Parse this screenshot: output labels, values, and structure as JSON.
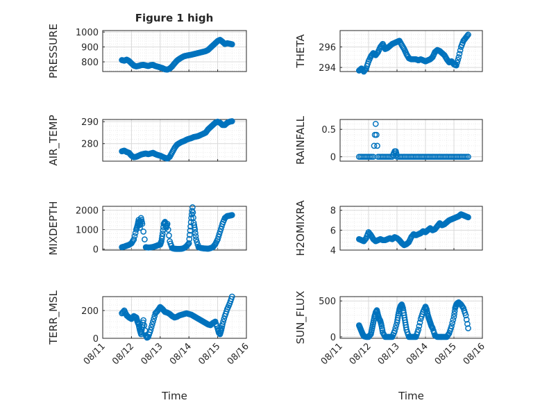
{
  "figure": {
    "title": "Figure 1 high"
  },
  "colors": {
    "marker": "#0072BD",
    "axis": "#262626",
    "grid": "#d9d9d9"
  },
  "chart_data": [
    {
      "type": "scatter",
      "ylabel": "PRESSURE",
      "ylim": [
        735,
        1010
      ],
      "yticks": [
        {
          "v": 800,
          "label": "800"
        },
        {
          "v": 900,
          "label": "900"
        },
        {
          "v": 1000,
          "label": "1000"
        }
      ],
      "x": [
        "2014-08-11T16:00",
        "2014-08-11T18:00",
        "2014-08-11T20:00",
        "2014-08-11T22:00",
        "2014-08-12T00:00",
        "2014-08-12T02:00",
        "2014-08-12T04:00",
        "2014-08-12T06:00",
        "2014-08-12T08:00",
        "2014-08-12T10:00",
        "2014-08-12T12:00",
        "2014-08-12T14:00",
        "2014-08-12T16:00",
        "2014-08-12T18:00",
        "2014-08-12T20:00",
        "2014-08-12T22:00",
        "2014-08-13T00:00",
        "2014-08-13T02:00",
        "2014-08-13T04:00",
        "2014-08-13T06:00",
        "2014-08-13T08:00",
        "2014-08-13T10:00",
        "2014-08-13T12:00",
        "2014-08-13T14:00",
        "2014-08-13T16:00",
        "2014-08-13T18:00",
        "2014-08-13T20:00",
        "2014-08-13T22:00",
        "2014-08-14T00:00",
        "2014-08-14T02:00",
        "2014-08-14T04:00",
        "2014-08-14T06:00",
        "2014-08-14T08:00",
        "2014-08-14T10:00",
        "2014-08-14T12:00",
        "2014-08-14T14:00",
        "2014-08-14T16:00",
        "2014-08-14T18:00",
        "2014-08-14T20:00",
        "2014-08-14T22:00",
        "2014-08-15T00:00",
        "2014-08-15T02:00",
        "2014-08-15T04:00",
        "2014-08-15T06:00",
        "2014-08-15T08:00",
        "2014-08-15T10:00",
        "2014-08-15T12:00"
      ],
      "y": [
        812,
        808,
        815,
        806,
        790,
        775,
        770,
        773,
        778,
        780,
        776,
        772,
        778,
        780,
        772,
        768,
        763,
        758,
        750,
        748,
        755,
        770,
        790,
        808,
        820,
        830,
        838,
        842,
        845,
        848,
        852,
        856,
        860,
        864,
        868,
        872,
        880,
        895,
        910,
        925,
        940,
        948,
        935,
        920,
        925,
        922,
        918
      ]
    },
    {
      "type": "scatter",
      "ylabel": "THETA",
      "ylim": [
        293.6,
        297.6
      ],
      "yticks": [
        {
          "v": 294,
          "label": "294"
        },
        {
          "v": 296,
          "label": "296"
        }
      ],
      "x": [
        "2014-08-11T16:00",
        "2014-08-11T18:00",
        "2014-08-11T20:00",
        "2014-08-11T22:00",
        "2014-08-12T00:00",
        "2014-08-12T02:00",
        "2014-08-12T04:00",
        "2014-08-12T06:00",
        "2014-08-12T08:00",
        "2014-08-12T10:00",
        "2014-08-12T12:00",
        "2014-08-12T14:00",
        "2014-08-12T16:00",
        "2014-08-12T18:00",
        "2014-08-12T20:00",
        "2014-08-12T22:00",
        "2014-08-13T00:00",
        "2014-08-13T02:00",
        "2014-08-13T04:00",
        "2014-08-13T06:00",
        "2014-08-13T08:00",
        "2014-08-13T10:00",
        "2014-08-13T12:00",
        "2014-08-13T14:00",
        "2014-08-13T16:00",
        "2014-08-13T18:00",
        "2014-08-13T20:00",
        "2014-08-13T22:00",
        "2014-08-14T00:00",
        "2014-08-14T02:00",
        "2014-08-14T04:00",
        "2014-08-14T06:00",
        "2014-08-14T08:00",
        "2014-08-14T10:00",
        "2014-08-14T12:00",
        "2014-08-14T14:00",
        "2014-08-14T16:00",
        "2014-08-14T18:00",
        "2014-08-14T20:00",
        "2014-08-14T22:00",
        "2014-08-15T00:00",
        "2014-08-15T02:00",
        "2014-08-15T04:00",
        "2014-08-15T06:00",
        "2014-08-15T08:00",
        "2014-08-15T10:00",
        "2014-08-15T12:00"
      ],
      "y": [
        293.7,
        293.9,
        293.6,
        293.9,
        294.6,
        295.1,
        295.4,
        295.2,
        295.5,
        296.0,
        296.3,
        295.8,
        295.9,
        296.1,
        296.3,
        296.4,
        296.5,
        296.6,
        296.2,
        295.8,
        295.3,
        294.9,
        294.8,
        294.8,
        294.8,
        294.7,
        294.8,
        294.7,
        294.6,
        294.7,
        294.8,
        295.0,
        295.5,
        295.7,
        295.6,
        295.4,
        295.2,
        294.8,
        294.5,
        294.6,
        294.3,
        294.2,
        295.0,
        296.0,
        296.6,
        296.9,
        297.2
      ]
    },
    {
      "type": "scatter",
      "ylabel": "AIR_TEMP",
      "ylim": [
        272,
        291
      ],
      "yticks": [
        {
          "v": 280,
          "label": "280"
        },
        {
          "v": 290,
          "label": "290"
        }
      ],
      "x": [
        "2014-08-11T16:00",
        "2014-08-11T18:00",
        "2014-08-11T20:00",
        "2014-08-11T22:00",
        "2014-08-12T00:00",
        "2014-08-12T02:00",
        "2014-08-12T04:00",
        "2014-08-12T06:00",
        "2014-08-12T08:00",
        "2014-08-12T10:00",
        "2014-08-12T12:00",
        "2014-08-12T14:00",
        "2014-08-12T16:00",
        "2014-08-12T18:00",
        "2014-08-12T20:00",
        "2014-08-12T22:00",
        "2014-08-13T00:00",
        "2014-08-13T02:00",
        "2014-08-13T04:00",
        "2014-08-13T06:00",
        "2014-08-13T08:00",
        "2014-08-13T10:00",
        "2014-08-13T12:00",
        "2014-08-13T14:00",
        "2014-08-13T16:00",
        "2014-08-13T18:00",
        "2014-08-13T20:00",
        "2014-08-13T22:00",
        "2014-08-14T00:00",
        "2014-08-14T02:00",
        "2014-08-14T04:00",
        "2014-08-14T06:00",
        "2014-08-14T08:00",
        "2014-08-14T10:00",
        "2014-08-14T12:00",
        "2014-08-14T14:00",
        "2014-08-14T16:00",
        "2014-08-14T18:00",
        "2014-08-14T20:00",
        "2014-08-14T22:00",
        "2014-08-15T00:00",
        "2014-08-15T02:00",
        "2014-08-15T04:00",
        "2014-08-15T06:00",
        "2014-08-15T08:00",
        "2014-08-15T10:00",
        "2014-08-15T12:00"
      ],
      "y": [
        276.5,
        276.8,
        276.2,
        275.8,
        274.5,
        273.8,
        274.0,
        274.5,
        275.0,
        275.3,
        275.5,
        275.2,
        275.5,
        275.8,
        275.2,
        274.8,
        274.5,
        274.0,
        273.5,
        273.2,
        274.0,
        276.0,
        278.0,
        279.5,
        280.2,
        280.8,
        281.2,
        281.8,
        282.2,
        282.5,
        283.0,
        283.2,
        283.5,
        284.0,
        284.5,
        285.0,
        286.5,
        287.5,
        288.5,
        289.5,
        290.0,
        289.5,
        288.5,
        288.5,
        289.5,
        290.0,
        290.2
      ]
    },
    {
      "type": "scatter",
      "ylabel": "RAINFALL",
      "ylim": [
        -0.08,
        0.68
      ],
      "yticks": [
        {
          "v": 0,
          "label": "0"
        },
        {
          "v": 0.5,
          "label": "0.5"
        }
      ],
      "x": [
        "2014-08-11T16:00",
        "2014-08-11T20:00",
        "2014-08-12T00:00",
        "2014-08-12T04:00",
        "2014-08-12T06:00",
        "2014-08-12T08:00",
        "2014-08-12T12:00",
        "2014-08-12T16:00",
        "2014-08-12T20:00",
        "2014-08-12T22:00",
        "2014-08-12T23:00",
        "2014-08-13T00:00",
        "2014-08-13T04:00",
        "2014-08-13T08:00",
        "2014-08-13T12:00",
        "2014-08-13T16:00",
        "2014-08-13T20:00",
        "2014-08-14T00:00",
        "2014-08-14T04:00",
        "2014-08-14T08:00",
        "2014-08-14T12:00",
        "2014-08-14T16:00",
        "2014-08-14T20:00",
        "2014-08-15T00:00",
        "2014-08-15T04:00",
        "2014-08-15T08:00",
        "2014-08-15T12:00"
      ],
      "y": [
        0,
        0,
        0,
        0,
        0.6,
        0,
        0,
        0,
        0,
        0.1,
        0.1,
        0,
        0,
        0,
        0,
        0,
        0,
        0,
        0,
        0,
        0,
        0,
        0,
        0,
        0,
        0,
        0
      ],
      "connect_zero_band": true
    },
    {
      "type": "scatter",
      "ylabel": "MIXDEPTH",
      "ylim": [
        -50,
        2200
      ],
      "yticks": [
        {
          "v": 0,
          "label": "0"
        },
        {
          "v": 1000,
          "label": "1000"
        },
        {
          "v": 2000,
          "label": "2000"
        }
      ],
      "x": [
        "2014-08-11T16:00",
        "2014-08-11T18:00",
        "2014-08-11T20:00",
        "2014-08-11T22:00",
        "2014-08-12T00:00",
        "2014-08-12T02:00",
        "2014-08-12T04:00",
        "2014-08-12T05:00",
        "2014-08-12T06:00",
        "2014-08-12T07:00",
        "2014-08-12T08:00",
        "2014-08-12T09:00",
        "2014-08-12T12:00",
        "2014-08-12T14:00",
        "2014-08-12T16:00",
        "2014-08-12T18:00",
        "2014-08-12T20:00",
        "2014-08-12T22:00",
        "2014-08-13T00:00",
        "2014-08-13T01:00",
        "2014-08-13T02:00",
        "2014-08-13T03:00",
        "2014-08-13T04:00",
        "2014-08-13T05:00",
        "2014-08-13T06:00",
        "2014-08-13T08:00",
        "2014-08-13T10:00",
        "2014-08-13T12:00",
        "2014-08-13T14:00",
        "2014-08-13T16:00",
        "2014-08-13T18:00",
        "2014-08-13T20:00",
        "2014-08-13T22:00",
        "2014-08-14T00:00",
        "2014-08-14T01:00",
        "2014-08-14T02:00",
        "2014-08-14T03:00",
        "2014-08-14T04:00",
        "2014-08-14T05:00",
        "2014-08-14T06:00",
        "2014-08-14T08:00",
        "2014-08-14T10:00",
        "2014-08-14T12:00",
        "2014-08-14T14:00",
        "2014-08-14T16:00",
        "2014-08-14T18:00",
        "2014-08-14T20:00",
        "2014-08-14T22:00",
        "2014-08-15T00:00",
        "2014-08-15T02:00",
        "2014-08-15T04:00",
        "2014-08-15T06:00",
        "2014-08-15T08:00",
        "2014-08-15T10:00",
        "2014-08-15T12:00"
      ],
      "y": [
        100,
        130,
        180,
        220,
        300,
        500,
        1000,
        1200,
        1500,
        1100,
        1600,
        1300,
        100,
        80,
        90,
        110,
        150,
        200,
        230,
        400,
        800,
        1300,
        1400,
        1100,
        1300,
        400,
        50,
        20,
        10,
        10,
        20,
        60,
        150,
        300,
        950,
        1600,
        2150,
        1350,
        1000,
        500,
        100,
        60,
        40,
        30,
        20,
        50,
        100,
        250,
        500,
        900,
        1300,
        1600,
        1700,
        1720,
        1750
      ]
    },
    {
      "type": "scatter",
      "ylabel": "H2OMIXRA",
      "ylim": [
        4.0,
        8.4
      ],
      "yticks": [
        {
          "v": 4,
          "label": "4"
        },
        {
          "v": 6,
          "label": "6"
        },
        {
          "v": 8,
          "label": "8"
        }
      ],
      "x": [
        "2014-08-11T16:00",
        "2014-08-11T18:00",
        "2014-08-11T20:00",
        "2014-08-11T22:00",
        "2014-08-12T00:00",
        "2014-08-12T02:00",
        "2014-08-12T04:00",
        "2014-08-12T06:00",
        "2014-08-12T08:00",
        "2014-08-12T10:00",
        "2014-08-12T12:00",
        "2014-08-12T14:00",
        "2014-08-12T16:00",
        "2014-08-12T18:00",
        "2014-08-12T20:00",
        "2014-08-12T22:00",
        "2014-08-13T00:00",
        "2014-08-13T02:00",
        "2014-08-13T04:00",
        "2014-08-13T06:00",
        "2014-08-13T08:00",
        "2014-08-13T10:00",
        "2014-08-13T12:00",
        "2014-08-13T14:00",
        "2014-08-13T16:00",
        "2014-08-13T18:00",
        "2014-08-13T20:00",
        "2014-08-13T22:00",
        "2014-08-14T00:00",
        "2014-08-14T02:00",
        "2014-08-14T04:00",
        "2014-08-14T06:00",
        "2014-08-14T08:00",
        "2014-08-14T10:00",
        "2014-08-14T12:00",
        "2014-08-14T14:00",
        "2014-08-14T16:00",
        "2014-08-14T18:00",
        "2014-08-14T20:00",
        "2014-08-14T22:00",
        "2014-08-15T00:00",
        "2014-08-15T02:00",
        "2014-08-15T04:00",
        "2014-08-15T06:00",
        "2014-08-15T08:00",
        "2014-08-15T10:00",
        "2014-08-15T12:00"
      ],
      "y": [
        5.1,
        5.0,
        4.9,
        5.2,
        5.8,
        5.5,
        5.1,
        4.9,
        5.0,
        5.1,
        5.0,
        5.0,
        5.1,
        5.2,
        5.1,
        5.3,
        5.2,
        5.0,
        4.7,
        4.5,
        4.6,
        4.8,
        5.3,
        5.6,
        5.5,
        5.6,
        5.7,
        5.9,
        5.8,
        6.0,
        6.2,
        6.0,
        6.1,
        6.4,
        6.7,
        6.5,
        6.6,
        6.8,
        7.0,
        7.1,
        7.2,
        7.3,
        7.4,
        7.6,
        7.5,
        7.4,
        7.3
      ]
    },
    {
      "type": "scatter",
      "ylabel": "TERR_MSL",
      "ylim": [
        0,
        300
      ],
      "yticks": [
        {
          "v": 0,
          "label": "0"
        },
        {
          "v": 200,
          "label": "200"
        }
      ],
      "x": [
        "2014-08-11T16:00",
        "2014-08-11T18:00",
        "2014-08-11T20:00",
        "2014-08-11T22:00",
        "2014-08-12T00:00",
        "2014-08-12T02:00",
        "2014-08-12T04:00",
        "2014-08-12T05:00",
        "2014-08-12T06:00",
        "2014-08-12T07:00",
        "2014-08-12T08:00",
        "2014-08-12T09:00",
        "2014-08-12T10:00",
        "2014-08-12T12:00",
        "2014-08-12T13:00",
        "2014-08-12T14:00",
        "2014-08-12T16:00",
        "2014-08-12T18:00",
        "2014-08-12T20:00",
        "2014-08-12T22:00",
        "2014-08-13T00:00",
        "2014-08-13T02:00",
        "2014-08-13T04:00",
        "2014-08-13T06:00",
        "2014-08-13T08:00",
        "2014-08-13T10:00",
        "2014-08-13T12:00",
        "2014-08-13T14:00",
        "2014-08-13T16:00",
        "2014-08-13T18:00",
        "2014-08-13T20:00",
        "2014-08-13T22:00",
        "2014-08-14T00:00",
        "2014-08-14T02:00",
        "2014-08-14T04:00",
        "2014-08-14T06:00",
        "2014-08-14T08:00",
        "2014-08-14T10:00",
        "2014-08-14T12:00",
        "2014-08-14T14:00",
        "2014-08-14T16:00",
        "2014-08-14T18:00",
        "2014-08-14T20:00",
        "2014-08-14T22:00",
        "2014-08-15T00:00",
        "2014-08-15T01:00",
        "2014-08-15T02:00",
        "2014-08-15T03:00",
        "2014-08-15T04:00",
        "2014-08-15T06:00",
        "2014-08-15T08:00",
        "2014-08-15T10:00",
        "2014-08-15T12:00"
      ],
      "y": [
        180,
        200,
        165,
        150,
        140,
        160,
        150,
        120,
        100,
        60,
        30,
        80,
        130,
        20,
        5,
        10,
        60,
        120,
        180,
        200,
        225,
        210,
        190,
        185,
        175,
        160,
        150,
        155,
        165,
        170,
        175,
        180,
        175,
        170,
        160,
        150,
        140,
        130,
        120,
        110,
        100,
        95,
        110,
        120,
        70,
        40,
        30,
        60,
        100,
        160,
        210,
        250,
        300
      ]
    },
    {
      "type": "scatter",
      "ylabel": "SUN_FLUX",
      "ylim": [
        -20,
        560
      ],
      "yticks": [
        {
          "v": 0,
          "label": "0"
        },
        {
          "v": 500,
          "label": "500"
        }
      ],
      "x": [
        "2014-08-11T16:00",
        "2014-08-11T17:00",
        "2014-08-11T18:00",
        "2014-08-11T19:00",
        "2014-08-11T20:00",
        "2014-08-11T22:00",
        "2014-08-12T00:00",
        "2014-08-12T02:00",
        "2014-08-12T03:00",
        "2014-08-12T04:00",
        "2014-08-12T05:00",
        "2014-08-12T06:00",
        "2014-08-12T07:00",
        "2014-08-12T08:00",
        "2014-08-12T09:00",
        "2014-08-12T10:00",
        "2014-08-12T11:00",
        "2014-08-12T12:00",
        "2014-08-12T14:00",
        "2014-08-12T16:00",
        "2014-08-12T18:00",
        "2014-08-12T20:00",
        "2014-08-12T22:00",
        "2014-08-13T00:00",
        "2014-08-13T01:00",
        "2014-08-13T02:00",
        "2014-08-13T03:00",
        "2014-08-13T04:00",
        "2014-08-13T05:00",
        "2014-08-13T06:00",
        "2014-08-13T07:00",
        "2014-08-13T08:00",
        "2014-08-13T10:00",
        "2014-08-13T12:00",
        "2014-08-13T14:00",
        "2014-08-13T16:00",
        "2014-08-13T18:00",
        "2014-08-13T20:00",
        "2014-08-13T22:00",
        "2014-08-14T00:00",
        "2014-08-14T01:00",
        "2014-08-14T02:00",
        "2014-08-14T03:00",
        "2014-08-14T04:00",
        "2014-08-14T05:00",
        "2014-08-14T06:00",
        "2014-08-14T08:00",
        "2014-08-14T10:00",
        "2014-08-14T12:00",
        "2014-08-14T14:00",
        "2014-08-14T16:00",
        "2014-08-14T18:00",
        "2014-08-14T20:00",
        "2014-08-14T22:00",
        "2014-08-15T00:00",
        "2014-08-15T01:00",
        "2014-08-15T02:00",
        "2014-08-15T03:00",
        "2014-08-15T04:00",
        "2014-08-15T06:00",
        "2014-08-15T08:00",
        "2014-08-15T10:00",
        "2014-08-15T12:00"
      ],
      "y": [
        160,
        120,
        80,
        40,
        10,
        0,
        0,
        40,
        120,
        200,
        280,
        340,
        370,
        300,
        250,
        220,
        150,
        60,
        0,
        0,
        0,
        0,
        80,
        200,
        300,
        380,
        430,
        450,
        400,
        300,
        200,
        100,
        0,
        0,
        0,
        0,
        100,
        250,
        350,
        420,
        380,
        300,
        250,
        200,
        150,
        120,
        20,
        0,
        0,
        0,
        0,
        0,
        50,
        150,
        280,
        400,
        450,
        470,
        480,
        450,
        400,
        300,
        120
      ]
    }
  ],
  "shared_x": {
    "xlabel": "Time",
    "xlim": [
      "2014-08-11T00:00",
      "2014-08-16T00:00"
    ],
    "xticks": [
      "08/11",
      "08/12",
      "08/13",
      "08/14",
      "08/15",
      "08/16"
    ]
  }
}
